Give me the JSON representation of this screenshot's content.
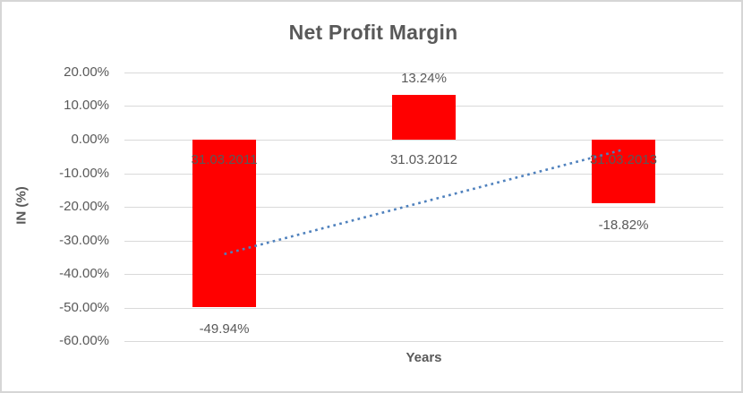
{
  "chart": {
    "title": "Net Profit Margin",
    "x_axis_title": "Years",
    "y_axis_title": "IN (%)"
  },
  "chart_data": {
    "type": "bar",
    "title": "Net Profit Margin",
    "xlabel": "Years",
    "ylabel": "IN (%)",
    "categories": [
      "31.03.2011",
      "31.03.2012",
      "31.03.2013"
    ],
    "values": [
      -49.94,
      13.24,
      -18.82
    ],
    "data_labels": [
      "-49.94%",
      "13.24%",
      "-18.82%"
    ],
    "y_ticks": [
      {
        "label": "20.00%",
        "value": 20
      },
      {
        "label": "10.00%",
        "value": 10
      },
      {
        "label": "0.00%",
        "value": 0
      },
      {
        "label": "-10.00%",
        "value": -10
      },
      {
        "label": "-20.00%",
        "value": -20
      },
      {
        "label": "-30.00%",
        "value": -30
      },
      {
        "label": "-40.00%",
        "value": -40
      },
      {
        "label": "-50.00%",
        "value": -50
      },
      {
        "label": "-60.00%",
        "value": -60
      }
    ],
    "ylim": [
      -60,
      20
    ],
    "grid": true,
    "legend": "none",
    "trendline": {
      "type": "linear",
      "style": "dotted",
      "applies_to_values": [
        -49.94,
        13.24,
        -18.82
      ]
    },
    "colors": {
      "bar": "#ff0000",
      "trendline": "#4f81bd",
      "text": "#595959",
      "gridline": "#d9d9d9",
      "border": "#d6d6d6",
      "background": "#ffffff"
    }
  }
}
